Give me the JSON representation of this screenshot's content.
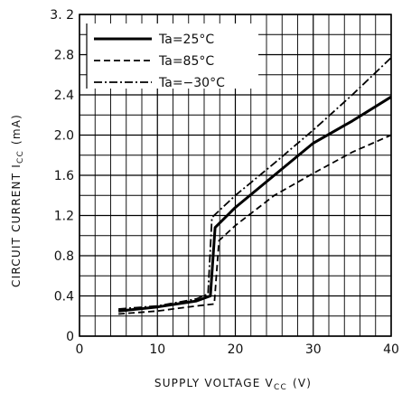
{
  "chart_data": {
    "type": "line",
    "xlabel": "SUPPLY VOLTAGE V",
    "xlabel_sub": "CC",
    "xlabel_unit": "(V)",
    "ylabel": "CIRCUIT CURRENT I",
    "ylabel_sub": "CC",
    "ylabel_unit": "(mA)",
    "xlim": [
      0,
      40
    ],
    "ylim": [
      0,
      3.2
    ],
    "x_major_ticks": [
      0,
      10,
      20,
      30,
      40
    ],
    "x_tick_labels": [
      "0",
      "10",
      "20",
      "30",
      "40"
    ],
    "y_major_ticks": [
      0,
      0.4,
      0.8,
      1.2,
      1.6,
      2.0,
      2.4,
      2.8,
      3.2
    ],
    "y_tick_labels": [
      "0",
      "0.4",
      "0.8",
      "1.2",
      "1.6",
      "2.0",
      "2.4",
      "2.8",
      "3. 2"
    ],
    "grid": true,
    "legend_position": "top-left",
    "series": [
      {
        "name": "Ta=25°C",
        "style": "solid",
        "x": [
          5,
          10,
          15,
          16.8,
          17.4,
          20,
          25,
          30,
          35,
          40
        ],
        "y": [
          0.25,
          0.29,
          0.35,
          0.4,
          1.08,
          1.28,
          1.6,
          1.92,
          2.14,
          2.38
        ]
      },
      {
        "name": "Ta=85°C",
        "style": "dashed",
        "x": [
          5,
          10,
          15,
          17.3,
          17.9,
          20,
          25,
          30,
          35,
          40
        ],
        "y": [
          0.22,
          0.25,
          0.3,
          0.32,
          0.95,
          1.1,
          1.4,
          1.62,
          1.83,
          2.0
        ]
      },
      {
        "name": "Ta=−30°C",
        "style": "dashdot",
        "x": [
          5,
          10,
          15,
          16.5,
          17.0,
          20,
          25,
          30,
          35,
          40
        ],
        "y": [
          0.27,
          0.3,
          0.37,
          0.42,
          1.18,
          1.4,
          1.72,
          2.05,
          2.4,
          2.77
        ]
      }
    ]
  }
}
